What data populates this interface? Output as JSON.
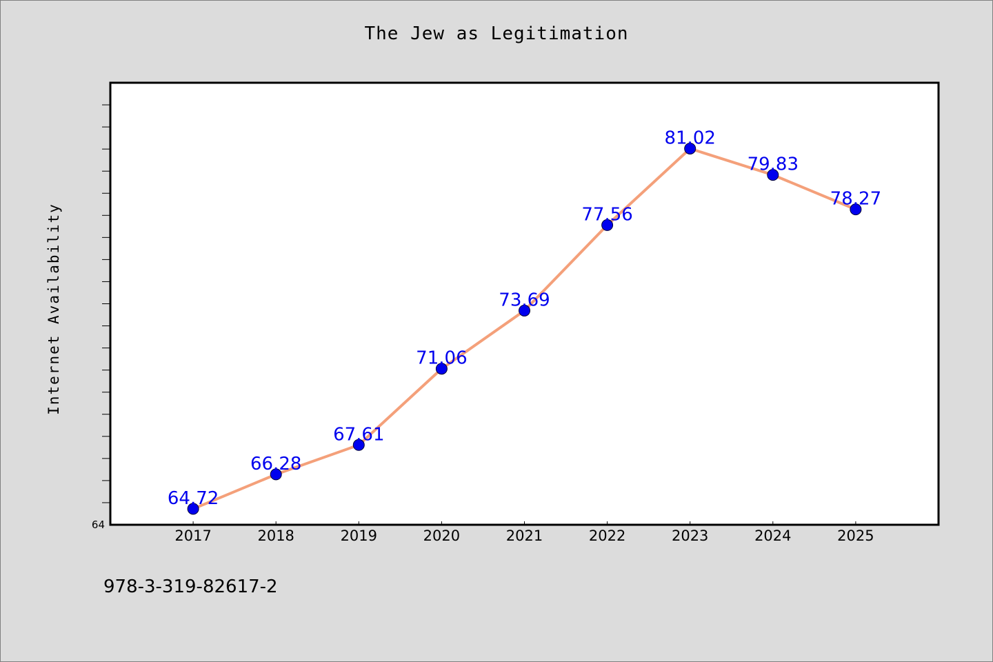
{
  "chart_data": {
    "type": "line",
    "title": "The Jew as Legitimation",
    "xlabel": "",
    "ylabel": "Internet Availability",
    "x": [
      "2017",
      "2018",
      "2019",
      "2020",
      "2021",
      "2022",
      "2023",
      "2024",
      "2025"
    ],
    "series": [
      {
        "values": [
          64.72,
          66.28,
          67.61,
          71.06,
          73.69,
          77.56,
          81.02,
          79.83,
          78.27
        ]
      }
    ],
    "y_tick_labels": [
      "64"
    ],
    "ylim": [
      64,
      84
    ],
    "xlim": [
      2016,
      2026
    ],
    "grid": false,
    "line_color": "#f4a07a",
    "marker_color": "#0000ee",
    "label_color": "#0000ee"
  },
  "footer": {
    "isbn": "978-3-319-82617-2"
  }
}
